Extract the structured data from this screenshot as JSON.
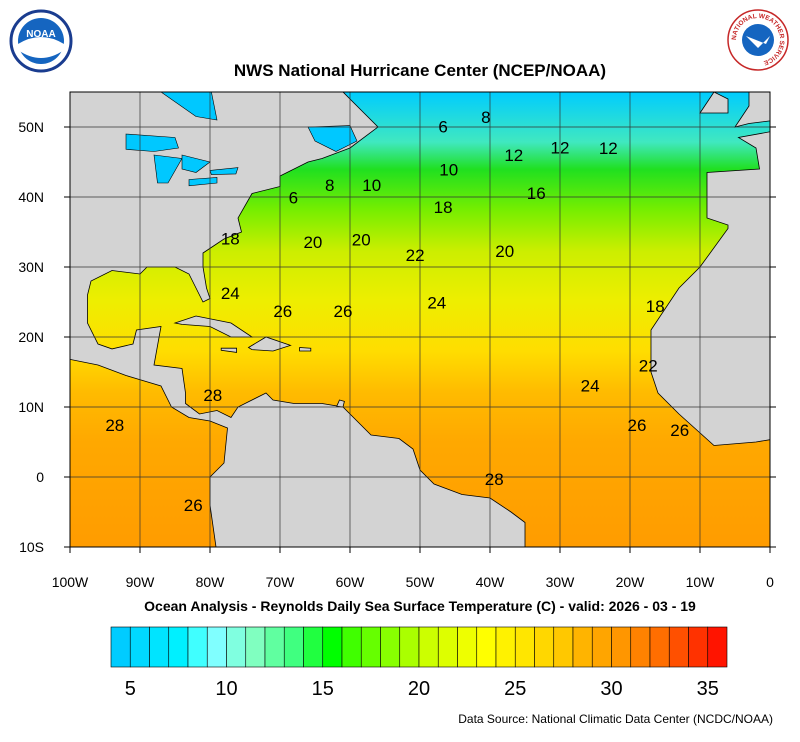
{
  "title": "NWS National Hurricane Center (NCEP/NOAA)",
  "subtitle": "Ocean Analysis - Reynolds Daily Sea Surface Temperature (C) - valid: 2026 - 03 - 19",
  "source": "Data Source: National Climatic Data Center (NCDC/NOAA)",
  "logos": {
    "noaa": "NOAA",
    "nws": "NATIONAL WEATHER SERVICE"
  },
  "map": {
    "lon_range": [
      -100,
      0
    ],
    "lat_range": [
      -10,
      55
    ],
    "lon_ticks": [
      {
        "value": -100,
        "label": "100W"
      },
      {
        "value": -90,
        "label": "90W"
      },
      {
        "value": -80,
        "label": "80W"
      },
      {
        "value": -70,
        "label": "70W"
      },
      {
        "value": -60,
        "label": "60W"
      },
      {
        "value": -50,
        "label": "50W"
      },
      {
        "value": -40,
        "label": "40W"
      },
      {
        "value": -30,
        "label": "30W"
      },
      {
        "value": -20,
        "label": "20W"
      },
      {
        "value": -10,
        "label": "10W"
      },
      0
    ],
    "lat_ticks": [
      {
        "value": -10,
        "label": "10S"
      },
      0,
      {
        "value": 10,
        "label": "10N"
      },
      {
        "value": 20,
        "label": "20N"
      },
      {
        "value": 30,
        "label": "30N"
      },
      {
        "value": 40,
        "label": "40N"
      },
      {
        "value": 50,
        "label": "50N"
      }
    ],
    "contour_labels": [
      {
        "text": "6",
        "lon": -46.7,
        "lat": 50.1
      },
      {
        "text": "8",
        "lon": -40.6,
        "lat": 51.4
      },
      {
        "text": "12",
        "lon": -36.6,
        "lat": 46
      },
      {
        "text": "12",
        "lon": -30,
        "lat": 47.1
      },
      {
        "text": "12",
        "lon": -23.1,
        "lat": 47
      },
      {
        "text": "10",
        "lon": -45.9,
        "lat": 43.9
      },
      {
        "text": "10",
        "lon": -56.9,
        "lat": 41.7
      },
      {
        "text": "8",
        "lon": -62.9,
        "lat": 41.7
      },
      {
        "text": "6",
        "lon": -68.1,
        "lat": 39.9
      },
      {
        "text": "16",
        "lon": -33.4,
        "lat": 40.6
      },
      {
        "text": "18",
        "lon": -46.7,
        "lat": 38.6
      },
      {
        "text": "18",
        "lon": -77.1,
        "lat": 34.1
      },
      {
        "text": "20",
        "lon": -65.3,
        "lat": 33.6
      },
      {
        "text": "20",
        "lon": -58.4,
        "lat": 33.9
      },
      {
        "text": "22",
        "lon": -50.7,
        "lat": 31.7
      },
      {
        "text": "20",
        "lon": -37.9,
        "lat": 32.3
      },
      {
        "text": "24",
        "lon": -77.1,
        "lat": 26.3
      },
      {
        "text": "26",
        "lon": -69.6,
        "lat": 23.7
      },
      {
        "text": "26",
        "lon": -61,
        "lat": 23.7
      },
      {
        "text": "24",
        "lon": -47.6,
        "lat": 24.9
      },
      {
        "text": "18",
        "lon": -16.4,
        "lat": 24.4
      },
      {
        "text": "28",
        "lon": -79.6,
        "lat": 11.7
      },
      {
        "text": "24",
        "lon": -25.7,
        "lat": 13.1
      },
      {
        "text": "22",
        "lon": -17.4,
        "lat": 15.9
      },
      {
        "text": "28",
        "lon": -93.6,
        "lat": 7.4
      },
      {
        "text": "26",
        "lon": -19,
        "lat": 7.4
      },
      {
        "text": "26",
        "lon": -12.9,
        "lat": 6.7
      },
      {
        "text": "28",
        "lon": -39.4,
        "lat": -0.3
      },
      {
        "text": "26",
        "lon": -82.4,
        "lat": -4
      }
    ]
  },
  "colorbar": {
    "range": [
      4,
      36
    ],
    "ticks": [
      5,
      10,
      15,
      20,
      25,
      30,
      35
    ],
    "colors": [
      "#00ccff",
      "#00d8ff",
      "#00e4ff",
      "#00f0ff",
      "#40ffff",
      "#80ffff",
      "#80ffe0",
      "#80ffc0",
      "#60ffa0",
      "#40ff80",
      "#20ff40",
      "#00ff00",
      "#40ff00",
      "#66ff00",
      "#88ff00",
      "#aaff00",
      "#ccff00",
      "#ddff00",
      "#eeff00",
      "#ffff00",
      "#fff200",
      "#ffe600",
      "#ffd700",
      "#ffc800",
      "#ffb400",
      "#ffa500",
      "#ff9600",
      "#ff8200",
      "#ff6e00",
      "#ff5000",
      "#ff3200",
      "#ff1400"
    ]
  }
}
